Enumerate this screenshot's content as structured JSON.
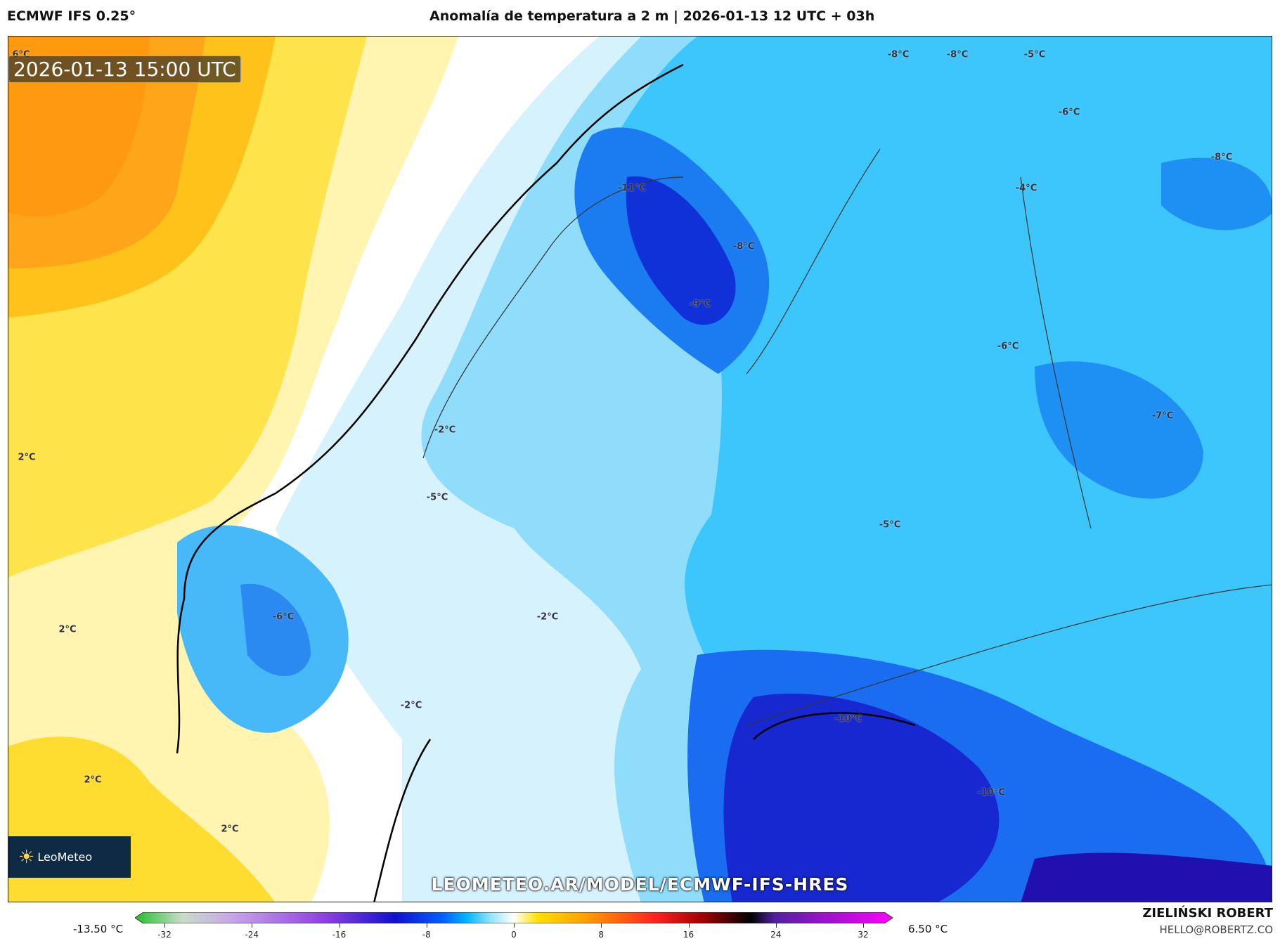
{
  "header": {
    "model": "ECMWF IFS 0.25°",
    "title": "Anomalía de temperatura a 2 m | 2026-01-13 12 UTC + 03h"
  },
  "map": {
    "valid_time": "2026-01-13 15:00 UTC",
    "logo_text": "LeoMeteo",
    "watermark": "LEOMETEO.AR/MODEL/ECMWF-IFS-HRES",
    "contour_labels": [
      "6°C",
      "-8°C",
      "-8°C",
      "-5°C",
      "-6°C",
      "-8°C",
      "-11°C",
      "-4°C",
      "-8°C",
      "-9°C",
      "-6°C",
      "-7°C",
      "-2°C",
      "2°C",
      "-5°C",
      "-5°C",
      "-6°C",
      "-2°C",
      "2°C",
      "-2°C",
      "-10°C",
      "2°C",
      "-10°C",
      "2°C"
    ]
  },
  "colorbar": {
    "min_label": "-13.50 °C",
    "max_label": "6.50 °C",
    "ticks": [
      "-32",
      "-24",
      "-16",
      "-8",
      "0",
      "8",
      "16",
      "24",
      "32"
    ],
    "range": [
      -32,
      32
    ],
    "colors": {
      "-32": "#22c02a",
      "-28": "#c8dcc8",
      "-24": "#c8a8e8",
      "-16": "#9040e0",
      "-10": "#1010d0",
      "-6": "#0060ff",
      "-4": "#00b4ff",
      "-2": "#90e4ff",
      "0": "#ffffff",
      "2": "#ffe000",
      "6": "#ffa000",
      "12": "#ff2020",
      "16": "#a00000",
      "20": "#000000",
      "22": "#5020a0",
      "32": "#ff00ff"
    }
  },
  "credits": {
    "author": "ZIELIŃSKI ROBERT",
    "email": "HELLO@ROBERTZ.CO"
  }
}
